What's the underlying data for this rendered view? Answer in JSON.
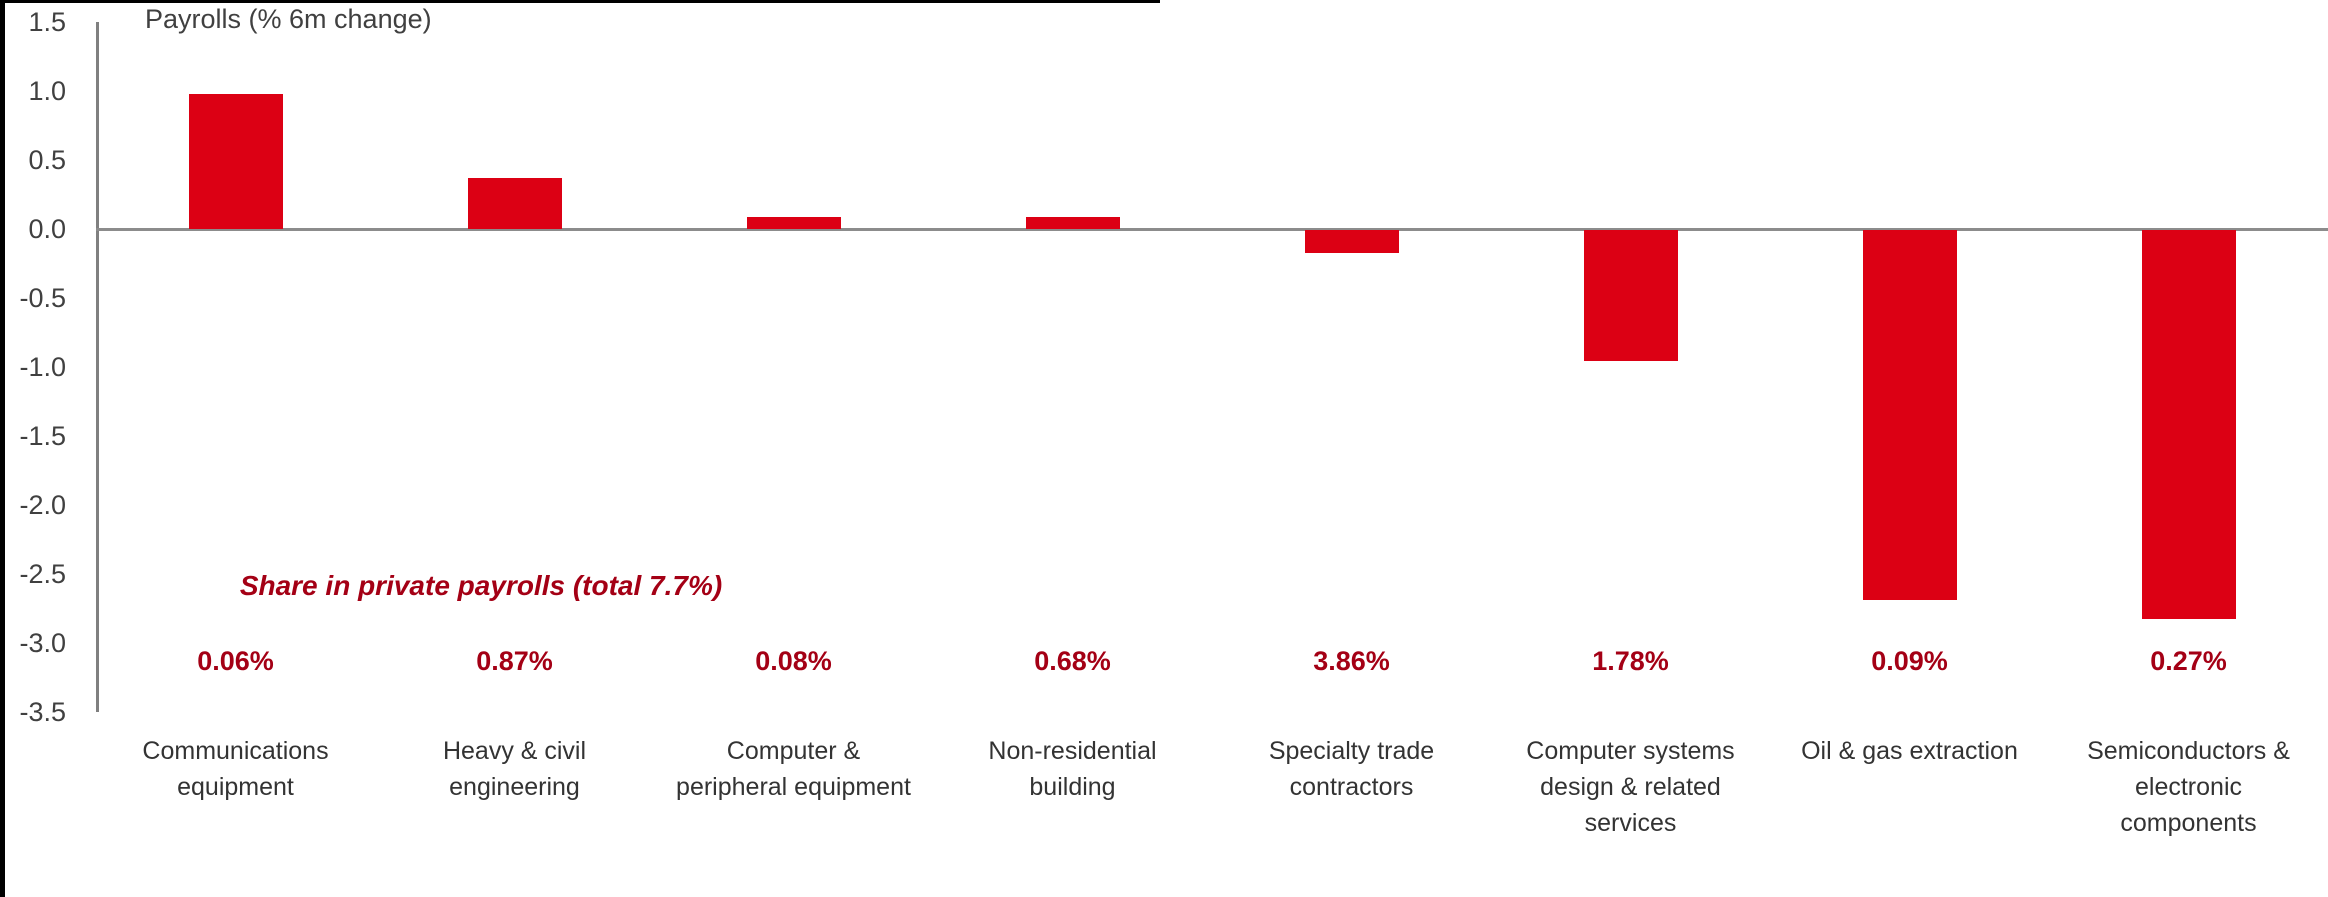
{
  "chart_data": {
    "type": "bar",
    "title": "Payrolls (% 6m change)",
    "categories": [
      [
        "Communications",
        "equipment"
      ],
      [
        "Heavy & civil",
        "engineering"
      ],
      [
        "Computer &",
        "peripheral equipment"
      ],
      [
        "Non-residential",
        "building"
      ],
      [
        "Specialty trade",
        "contractors"
      ],
      [
        "Computer systems",
        "design & related",
        "services"
      ],
      [
        "Oil & gas extraction"
      ],
      [
        "Semiconductors &",
        "electronic",
        "components"
      ]
    ],
    "values": [
      0.98,
      0.37,
      0.09,
      0.09,
      -0.17,
      -0.95,
      -2.68,
      -2.82
    ],
    "share_labels": [
      "0.06%",
      "0.87%",
      "0.08%",
      "0.68%",
      "3.86%",
      "1.78%",
      "0.09%",
      "0.27%"
    ],
    "annotation": "Share in private payrolls (total 7.7%)",
    "y_tick_labels": [
      "1.5",
      "1.0",
      "0.5",
      "0.0",
      "-0.5",
      "-1.0",
      "-1.5",
      "-2.0",
      "-2.5",
      "-3.0",
      "-3.5"
    ],
    "ylim": [
      -3.5,
      1.5
    ],
    "xlabel": "",
    "ylabel": "",
    "grid": "off",
    "legend": "none",
    "bar_color": "#DC0014",
    "accent_text_color": "#A40015",
    "axis_color": "#808080",
    "tick_text_color": "#404040"
  }
}
